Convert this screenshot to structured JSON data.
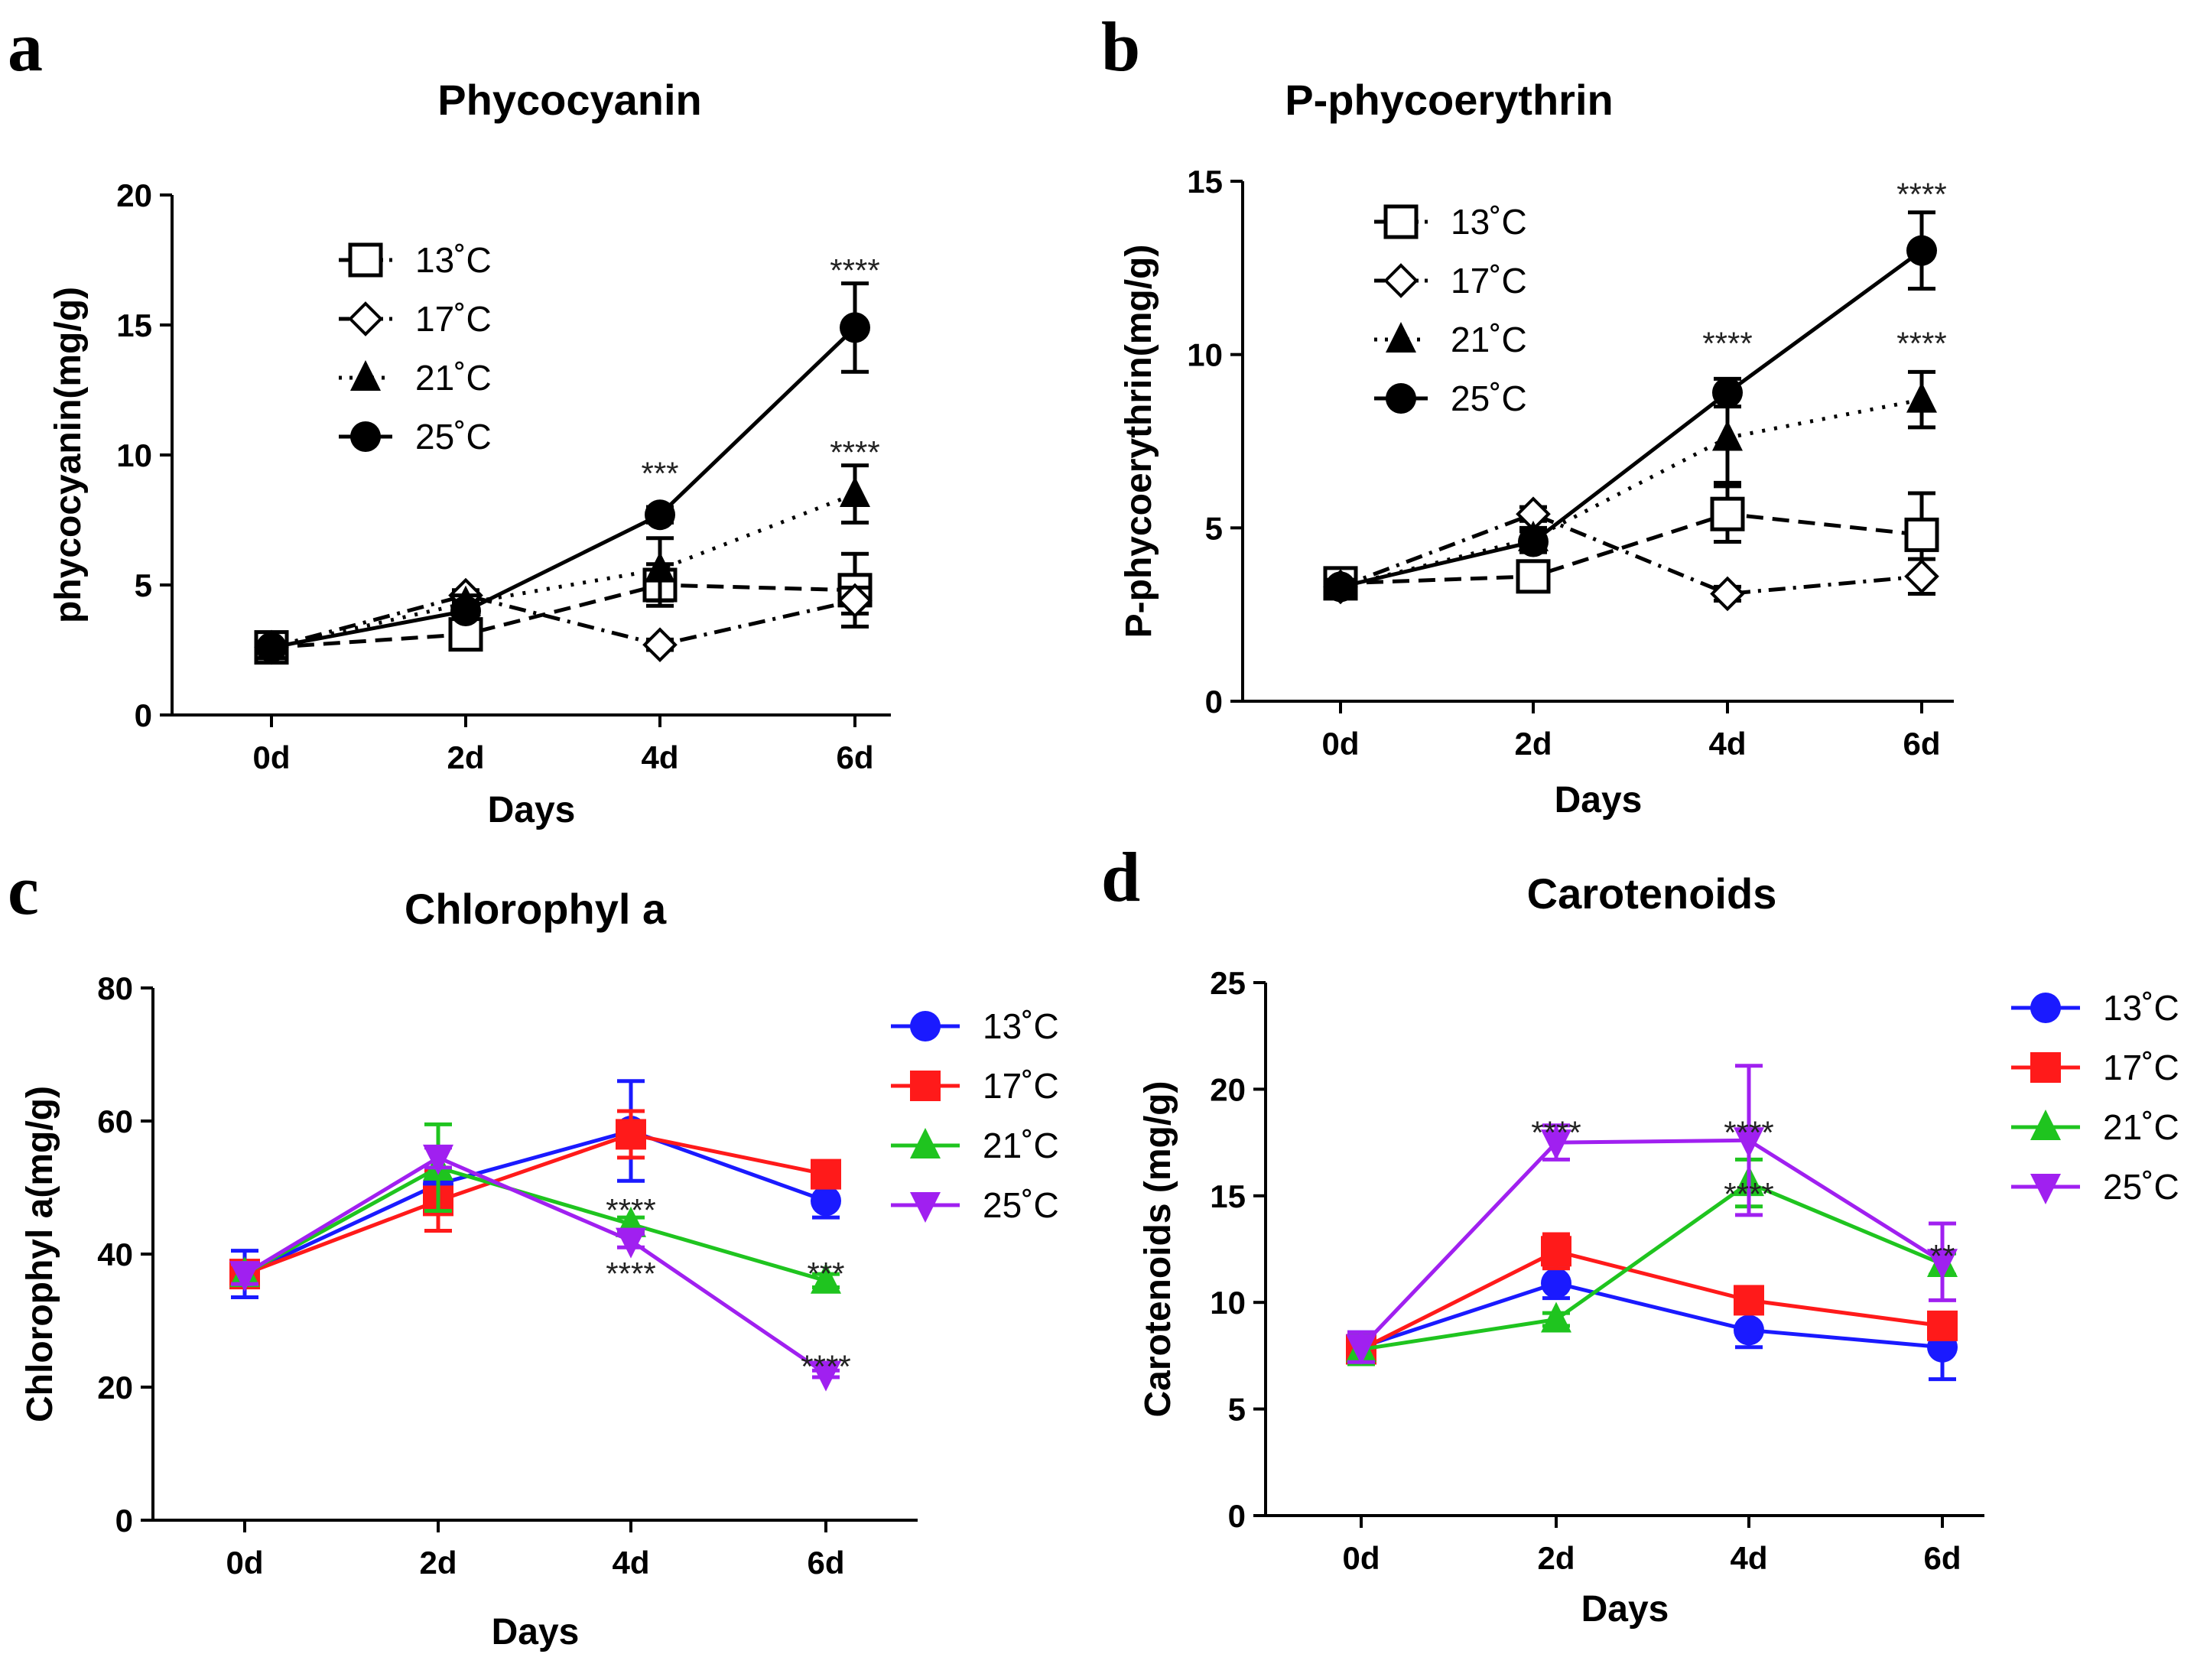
{
  "chart_data": [
    {
      "id": "a",
      "panel_letter": "a",
      "type": "line",
      "title": "Phycocyanin",
      "xlabel": "Days",
      "ylabel": "phycocyanin(mg/g)",
      "categories": [
        "0d",
        "2d",
        "4d",
        "6d"
      ],
      "ylim": [
        0,
        20
      ],
      "yticks": [
        0,
        5,
        10,
        15,
        20
      ],
      "legend_position": "top-left",
      "colored": false,
      "series": [
        {
          "name": "13˚C",
          "marker": "square-open",
          "dash": "dashed",
          "color": "#000000",
          "values": [
            2.6,
            3.1,
            5.0,
            4.8
          ],
          "errors": [
            0.2,
            0.3,
            0.8,
            1.4
          ]
        },
        {
          "name": "17˚C",
          "marker": "diamond-open",
          "dash": "dashdot",
          "color": "#000000",
          "values": [
            2.6,
            4.6,
            2.7,
            4.4
          ],
          "errors": [
            0.2,
            0.2,
            0.2,
            0.5
          ]
        },
        {
          "name": "21˚C",
          "marker": "triangle-up",
          "dash": "dotted",
          "color": "#000000",
          "values": [
            2.6,
            4.3,
            5.6,
            8.5
          ],
          "errors": [
            0.2,
            0.3,
            1.2,
            1.1
          ]
        },
        {
          "name": "25˚C",
          "marker": "circle",
          "dash": "solid",
          "color": "#000000",
          "values": [
            2.6,
            4.0,
            7.7,
            14.9
          ],
          "errors": [
            0.2,
            0.3,
            0.3,
            1.7
          ]
        }
      ],
      "annotations": [
        {
          "text": "***",
          "category": "4d",
          "y": 9.4
        },
        {
          "text": "****",
          "category": "6d",
          "y": 17.2
        },
        {
          "text": "****",
          "category": "6d",
          "y": 10.2
        }
      ]
    },
    {
      "id": "b",
      "panel_letter": "b",
      "type": "line",
      "title": "P-phycoerythrin",
      "xlabel": "Days",
      "ylabel": "P-phycoerythrin(mg/g)",
      "categories": [
        "0d",
        "2d",
        "4d",
        "6d"
      ],
      "ylim": [
        0,
        15
      ],
      "yticks": [
        0,
        5,
        10,
        15
      ],
      "legend_position": "top-left",
      "colored": false,
      "series": [
        {
          "name": "13˚C",
          "marker": "square-open",
          "dash": "dashed",
          "color": "#000000",
          "values": [
            3.4,
            3.6,
            5.4,
            4.8
          ],
          "errors": [
            0.3,
            0.3,
            0.8,
            1.2
          ]
        },
        {
          "name": "17˚C",
          "marker": "diamond-open",
          "dash": "dashdot",
          "color": "#000000",
          "values": [
            3.3,
            5.4,
            3.1,
            3.6
          ],
          "errors": [
            0.2,
            0.2,
            0.2,
            0.5
          ]
        },
        {
          "name": "21˚C",
          "marker": "triangle-up",
          "dash": "dotted",
          "color": "#000000",
          "values": [
            3.3,
            4.7,
            7.6,
            8.7
          ],
          "errors": [
            0.2,
            0.3,
            1.3,
            0.8
          ]
        },
        {
          "name": "25˚C",
          "marker": "circle",
          "dash": "solid",
          "color": "#000000",
          "values": [
            3.3,
            4.6,
            8.9,
            13.0
          ],
          "errors": [
            0.2,
            0.3,
            0.4,
            1.1
          ]
        }
      ],
      "annotations": [
        {
          "text": "****",
          "category": "4d",
          "y": 10.4
        },
        {
          "text": "****",
          "category": "6d",
          "y": 14.7
        },
        {
          "text": "****",
          "category": "6d",
          "y": 10.4
        }
      ]
    },
    {
      "id": "c",
      "panel_letter": "c",
      "type": "line",
      "title": "Chlorophyl a",
      "xlabel": "Days",
      "ylabel": "Chlorophyl a(mg/g)",
      "categories": [
        "0d",
        "2d",
        "4d",
        "6d"
      ],
      "ylim": [
        0,
        80
      ],
      "yticks": [
        0,
        20,
        40,
        60,
        80
      ],
      "legend_position": "top-right",
      "colored": true,
      "series": [
        {
          "name": "13˚C",
          "marker": "circle",
          "dash": "solid",
          "color": "#1a1aff",
          "values": [
            37,
            50.5,
            58.5,
            48
          ],
          "errors": [
            3.5,
            2,
            7.5,
            2.5
          ]
        },
        {
          "name": "17˚C",
          "marker": "square",
          "dash": "solid",
          "color": "#ff1a1a",
          "values": [
            37,
            48,
            58,
            52
          ],
          "errors": [
            1.5,
            4.5,
            3.5,
            1
          ]
        },
        {
          "name": "21˚C",
          "marker": "triangle-up",
          "dash": "solid",
          "color": "#1fc41f",
          "values": [
            37,
            53,
            44.5,
            36
          ],
          "errors": [
            1.5,
            6.5,
            1,
            1
          ]
        },
        {
          "name": "25˚C",
          "marker": "triangle-down",
          "dash": "solid",
          "color": "#a020f0",
          "values": [
            37,
            54.5,
            42,
            22
          ],
          "errors": [
            1.5,
            1.5,
            1,
            0.5
          ]
        }
      ],
      "annotations": [
        {
          "text": "****",
          "category": "4d",
          "y": 47.0
        },
        {
          "text": "****",
          "category": "4d",
          "y": 37.5
        },
        {
          "text": "***",
          "category": "6d",
          "y": 37.5
        },
        {
          "text": "****",
          "category": "6d",
          "y": 23.5
        }
      ]
    },
    {
      "id": "d",
      "panel_letter": "d",
      "type": "line",
      "title": "Carotenoids",
      "xlabel": "Days",
      "ylabel": "Carotenoids (mg/g)",
      "categories": [
        "0d",
        "2d",
        "4d",
        "6d"
      ],
      "ylim": [
        0,
        25
      ],
      "yticks": [
        0,
        5,
        10,
        15,
        20,
        25
      ],
      "legend_position": "top-right",
      "colored": true,
      "series": [
        {
          "name": "13˚C",
          "marker": "circle",
          "dash": "solid",
          "color": "#1a1aff",
          "values": [
            7.9,
            10.9,
            8.7,
            7.9
          ],
          "errors": [
            0.7,
            0.7,
            0.8,
            1.5
          ]
        },
        {
          "name": "17˚C",
          "marker": "square",
          "dash": "solid",
          "color": "#ff1a1a",
          "values": [
            7.8,
            12.4,
            10.1,
            8.9
          ],
          "errors": [
            0.7,
            0.8,
            0.6,
            0.6
          ]
        },
        {
          "name": "21˚C",
          "marker": "triangle-up",
          "dash": "solid",
          "color": "#1fc41f",
          "values": [
            7.8,
            9.2,
            15.6,
            11.8
          ],
          "errors": [
            0.7,
            0.3,
            1.1,
            0.5
          ]
        },
        {
          "name": "25˚C",
          "marker": "triangle-down",
          "dash": "solid",
          "color": "#a020f0",
          "values": [
            7.9,
            17.5,
            17.6,
            11.9
          ],
          "errors": [
            0.7,
            0.8,
            3.5,
            1.8
          ]
        }
      ],
      "annotations": [
        {
          "text": "****",
          "category": "2d",
          "y": 18.1
        },
        {
          "text": "****",
          "category": "4d",
          "y": 18.1
        },
        {
          "text": "****",
          "category": "4d",
          "y": 15.2
        },
        {
          "text": "**",
          "category": "6d",
          "y": 12.3
        }
      ]
    }
  ]
}
